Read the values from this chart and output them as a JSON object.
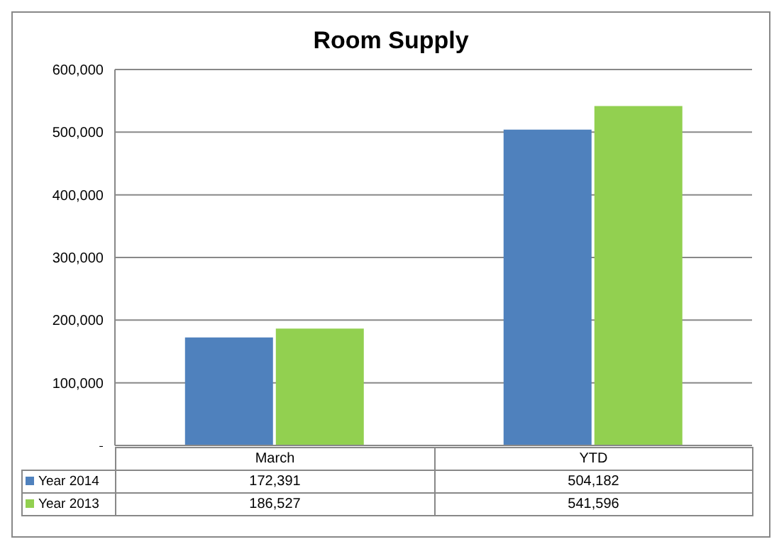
{
  "chart_data": {
    "type": "bar",
    "title": "Room Supply",
    "categories": [
      "March",
      "YTD"
    ],
    "series": [
      {
        "name": "Year 2014",
        "color": "#4f81bd",
        "values": [
          172391,
          504182
        ],
        "value_labels": [
          "172,391",
          "504,182"
        ]
      },
      {
        "name": "Year 2013",
        "color": "#92d050",
        "values": [
          186527,
          541596
        ],
        "value_labels": [
          "186,527",
          "541,596"
        ]
      }
    ],
    "ylim": [
      0,
      600000
    ],
    "yticks": [
      {
        "value": 0,
        "label": "-"
      },
      {
        "value": 100000,
        "label": "100,000"
      },
      {
        "value": 200000,
        "label": "200,000"
      },
      {
        "value": 300000,
        "label": "300,000"
      },
      {
        "value": 400000,
        "label": "400,000"
      },
      {
        "value": 500000,
        "label": "500,000"
      },
      {
        "value": 600000,
        "label": "600,000"
      }
    ],
    "grid": "y",
    "legend": "bottom"
  }
}
